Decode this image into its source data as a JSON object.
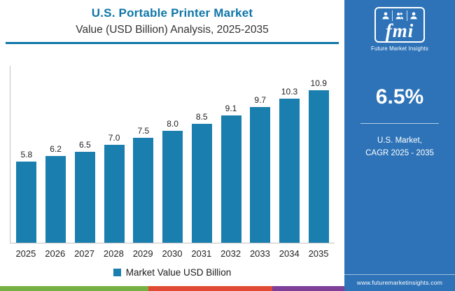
{
  "header": {
    "title_line1": "U.S. Portable Printer Market",
    "title_line2": "Value (USD Billion) Analysis, 2025-2035"
  },
  "chart_data": {
    "type": "bar",
    "title": "U.S. Portable Printer Market Value (USD Billion) Analysis, 2025-2035",
    "categories": [
      "2025",
      "2026",
      "2027",
      "2028",
      "2029",
      "2030",
      "2031",
      "2032",
      "2033",
      "2034",
      "2035"
    ],
    "values": [
      5.8,
      6.2,
      6.5,
      7.0,
      7.5,
      8.0,
      8.5,
      9.1,
      9.7,
      10.3,
      10.9
    ],
    "value_labels": [
      "5.8",
      "6.2",
      "6.5",
      "7.0",
      "7.5",
      "8.0",
      "8.5",
      "9.1",
      "9.7",
      "10.3",
      "10.9"
    ],
    "xlabel": "",
    "ylabel": "",
    "ylim": [
      0,
      12
    ],
    "grid": false,
    "legend": "Market Value USD Billion",
    "legend_position": "bottom"
  },
  "sidebar": {
    "logo": {
      "text": "fmi",
      "subtext": "Future Market Insights"
    },
    "cagr_value": "6.5%",
    "cagr_label_line1": "U.S. Market,",
    "cagr_label_line2": "CAGR 2025 - 2035",
    "website": "www.futuremarketinsights.com"
  },
  "colors": {
    "accent_teal": "#0e76a8",
    "bar": "#1a7fae",
    "sidebar_bg": "#2e73b8",
    "stripe_green": "#76b043",
    "stripe_red": "#e04a32",
    "stripe_purple": "#7d3f98"
  }
}
